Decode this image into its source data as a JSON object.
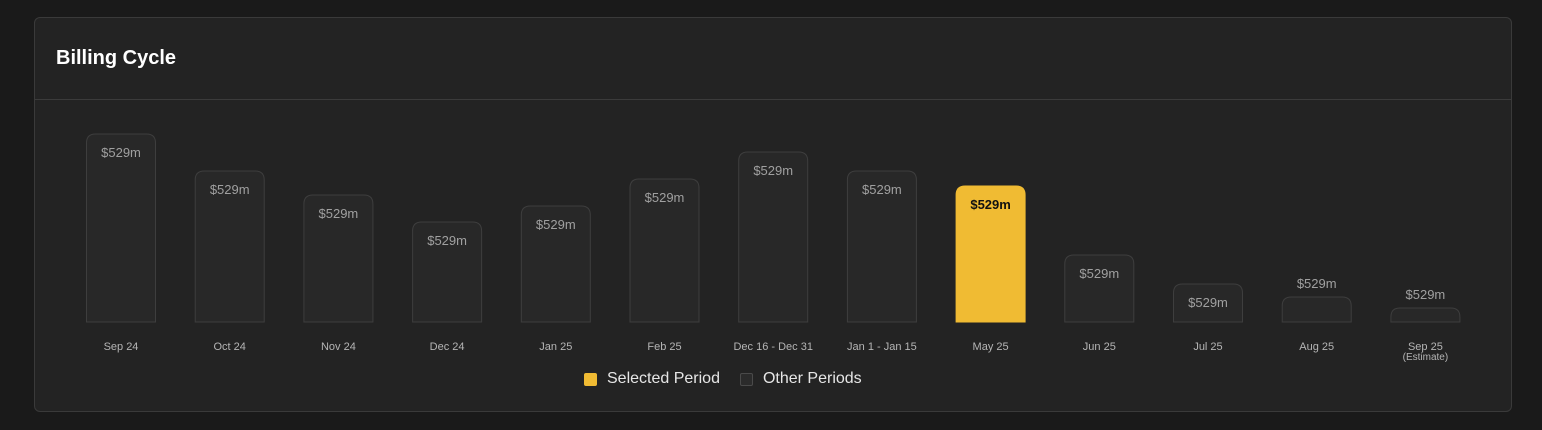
{
  "card": {
    "title": "Billing Cycle"
  },
  "legend": {
    "selected_label": "Selected Period",
    "other_label": "Other Periods"
  },
  "colors": {
    "selected": "#f0bb33",
    "other_fill": "#282828",
    "other_stroke": "#3e3e3e",
    "bar_label": "#a0a0a0",
    "selected_bar_label": "#111111",
    "axis_label": "#b5b5b5"
  },
  "chart_data": {
    "type": "bar",
    "title": "Billing Cycle",
    "categories": [
      "Sep 24",
      "Oct 24",
      "Nov 24",
      "Dec 24",
      "Jan 25",
      "Feb 25",
      "Dec 16 - Dec 31",
      "Jan 1 - Jan 15",
      "May 25",
      "Jun 25",
      "Jul 25",
      "Aug 25",
      "Sep 25"
    ],
    "sublabels": [
      "",
      "",
      "",
      "",
      "",
      "",
      "",
      "",
      "",
      "",
      "",
      "",
      "(Estimate)"
    ],
    "values": [
      188,
      151,
      127,
      100,
      116,
      143,
      170,
      151,
      136,
      67,
      38,
      25,
      14
    ],
    "data_labels": [
      "$529m",
      "$529m",
      "$529m",
      "$529m",
      "$529m",
      "$529m",
      "$529m",
      "$529m",
      "$529m",
      "$529m",
      "$529m",
      "$529m",
      "$529m"
    ],
    "selected_index": 8,
    "ylim": [
      0,
      200
    ],
    "grid": false,
    "legend": [
      "Selected Period",
      "Other Periods"
    ],
    "legend_position": "bottom-center"
  }
}
